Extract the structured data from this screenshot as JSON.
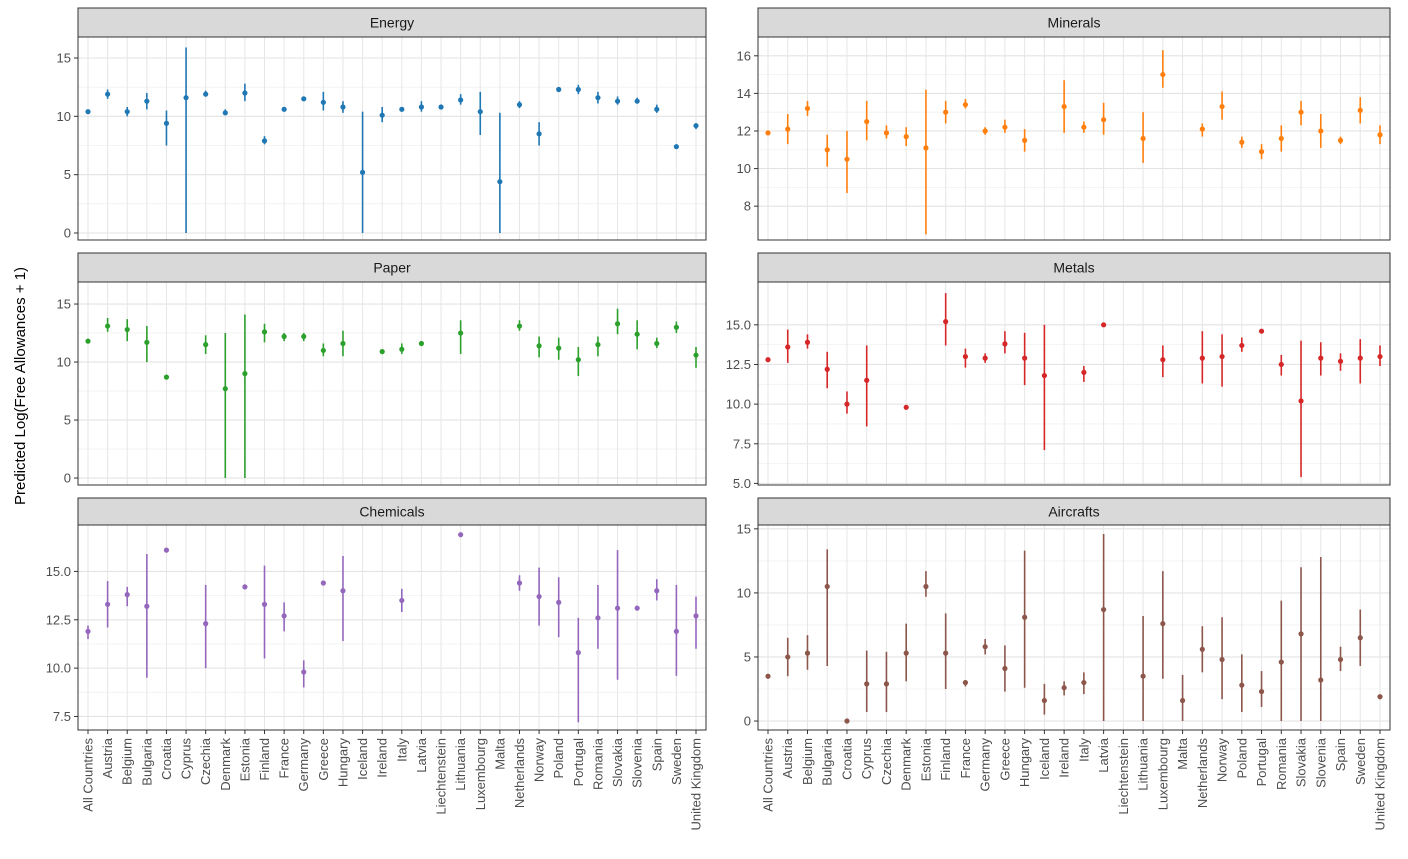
{
  "chart_data": {
    "type": "scatter",
    "ylabel": "Predicted Log(Free Allowances + 1)",
    "xlabel": "",
    "categories": [
      "All Countries",
      "Austria",
      "Belgium",
      "Bulgaria",
      "Croatia",
      "Cyprus",
      "Czechia",
      "Denmark",
      "Estonia",
      "Finland",
      "France",
      "Germany",
      "Greece",
      "Hungary",
      "Iceland",
      "Ireland",
      "Italy",
      "Latvia",
      "Liechtenstein",
      "Lithuania",
      "Luxembourg",
      "Malta",
      "Netherlands",
      "Norway",
      "Poland",
      "Portugal",
      "Romania",
      "Slovakia",
      "Slovenia",
      "Spain",
      "Sweden",
      "United Kingdom"
    ],
    "panels": [
      {
        "title": "Energy",
        "color": "#1f77b4",
        "ylim": [
          -0.6,
          16.8
        ],
        "yticks": [
          0,
          5,
          10,
          15
        ],
        "ytick_labels": [
          "0",
          "5",
          "10",
          "15"
        ],
        "points": [
          [
            10.4,
            10.4,
            10.4
          ],
          [
            11.9,
            11.5,
            12.3
          ],
          [
            10.4,
            10.0,
            10.8
          ],
          [
            11.3,
            10.6,
            12.0
          ],
          [
            9.4,
            7.5,
            10.5
          ],
          [
            11.6,
            0,
            15.9
          ],
          [
            11.9,
            11.7,
            12.2
          ],
          [
            10.3,
            10.1,
            10.6
          ],
          [
            12.0,
            11.3,
            12.8
          ],
          [
            7.9,
            7.6,
            8.3
          ],
          [
            10.6,
            10.5,
            10.8
          ],
          [
            11.5,
            11.4,
            11.6
          ],
          [
            11.2,
            10.5,
            12.1
          ],
          [
            10.8,
            10.3,
            11.3
          ],
          [
            5.2,
            0,
            10.4
          ],
          [
            10.1,
            9.5,
            10.8
          ],
          [
            10.6,
            10.5,
            10.8
          ],
          [
            10.8,
            10.4,
            11.3
          ],
          [
            10.8,
            10.7,
            10.9
          ],
          [
            11.4,
            11.0,
            11.9
          ],
          [
            10.4,
            8.4,
            12.1
          ],
          [
            4.4,
            0,
            10.3
          ],
          [
            11.0,
            10.7,
            11.3
          ],
          [
            8.5,
            7.5,
            9.5
          ],
          [
            12.3,
            12.3,
            12.3
          ],
          [
            12.3,
            11.9,
            12.7
          ],
          [
            11.6,
            11.1,
            12.1
          ],
          [
            11.3,
            11.0,
            11.7
          ],
          [
            11.3,
            11.1,
            11.6
          ],
          [
            10.6,
            10.3,
            11.0
          ],
          [
            7.4,
            7.2,
            7.6
          ],
          [
            9.2,
            8.9,
            9.4
          ]
        ]
      },
      {
        "title": "Minerals",
        "color": "#ff7f0e",
        "ylim": [
          6.2,
          17.0
        ],
        "yticks": [
          8,
          10,
          12,
          14,
          16
        ],
        "ytick_labels": [
          "8",
          "10",
          "12",
          "14",
          "16"
        ],
        "points": [
          [
            11.9,
            11.8,
            12.0
          ],
          [
            12.1,
            11.3,
            12.9
          ],
          [
            13.2,
            12.8,
            13.6
          ],
          [
            11.0,
            10.1,
            11.8
          ],
          [
            10.5,
            8.7,
            12.0
          ],
          [
            12.5,
            11.5,
            13.6
          ],
          [
            11.9,
            11.6,
            12.3
          ],
          [
            11.7,
            11.2,
            12.2
          ],
          [
            11.1,
            6.5,
            14.2
          ],
          [
            13.0,
            12.4,
            13.6
          ],
          [
            13.4,
            13.2,
            13.7
          ],
          [
            12.0,
            11.8,
            12.2
          ],
          [
            12.2,
            11.9,
            12.6
          ],
          [
            11.5,
            10.9,
            12.1
          ],
          [
            13.3,
            11.9,
            14.7
          ],
          [
            12.2,
            11.9,
            12.5
          ],
          [
            12.6,
            11.8,
            13.5
          ],
          [
            11.6,
            10.3,
            13.0
          ],
          [
            15.0,
            14.3,
            16.3
          ],
          [
            12.1,
            11.7,
            12.4
          ],
          [
            13.3,
            12.6,
            14.1
          ],
          [
            11.4,
            11.1,
            11.7
          ],
          [
            10.9,
            10.5,
            11.3
          ],
          [
            11.6,
            10.9,
            12.3
          ],
          [
            13.0,
            12.3,
            13.6
          ],
          [
            12.0,
            11.1,
            12.9
          ],
          [
            11.5,
            11.3,
            11.7
          ],
          [
            13.1,
            12.4,
            13.8
          ],
          [
            11.8,
            11.3,
            12.3
          ]
        ],
        "point_categories": [
          "All Countries",
          "Austria",
          "Belgium",
          "Bulgaria",
          "Croatia",
          "Cyprus",
          "Czechia",
          "Denmark",
          "Estonia",
          "Finland",
          "France",
          "Germany",
          "Greece",
          "Hungary",
          "Ireland",
          "Italy",
          "Latvia",
          "Lithuania",
          "Luxembourg",
          "Netherlands",
          "Norway",
          "Poland",
          "Portugal",
          "Romania",
          "Slovakia",
          "Slovenia",
          "Spain",
          "Sweden",
          "United Kingdom"
        ]
      },
      {
        "title": "Paper",
        "color": "#2ca02c",
        "ylim": [
          -0.6,
          16.9
        ],
        "yticks": [
          0,
          5,
          10,
          15
        ],
        "ytick_labels": [
          "0",
          "5",
          "10",
          "15"
        ],
        "points": [
          [
            11.8,
            11.8,
            11.8
          ],
          [
            13.1,
            12.6,
            13.8
          ],
          [
            12.8,
            11.8,
            13.7
          ],
          [
            11.7,
            10.0,
            13.1
          ],
          [
            8.7,
            8.7,
            8.7
          ],
          [
            11.5,
            10.7,
            12.3
          ],
          [
            7.7,
            0,
            12.5
          ],
          [
            9.0,
            0,
            14.1
          ],
          [
            12.6,
            11.7,
            13.3
          ],
          [
            12.2,
            11.8,
            12.5
          ],
          [
            12.2,
            11.8,
            12.5
          ],
          [
            11.0,
            10.5,
            11.6
          ],
          [
            11.6,
            10.5,
            12.7
          ],
          [
            10.9,
            10.9,
            10.9
          ],
          [
            11.1,
            10.7,
            11.6
          ],
          [
            11.6,
            11.6,
            11.6
          ],
          [
            12.5,
            10.7,
            13.6
          ],
          [
            13.1,
            12.7,
            13.6
          ],
          [
            11.4,
            10.4,
            12.2
          ],
          [
            11.2,
            10.2,
            12.1
          ],
          [
            10.2,
            8.8,
            11.3
          ],
          [
            11.5,
            10.5,
            12.2
          ],
          [
            13.3,
            12.4,
            14.6
          ],
          [
            12.4,
            11.1,
            13.6
          ],
          [
            11.6,
            11.2,
            12.1
          ],
          [
            13.0,
            12.5,
            13.5
          ],
          [
            10.6,
            9.5,
            11.3
          ]
        ],
        "point_categories": [
          "All Countries",
          "Austria",
          "Belgium",
          "Bulgaria",
          "Croatia",
          "Czechia",
          "Denmark",
          "Estonia",
          "Finland",
          "France",
          "Germany",
          "Greece",
          "Hungary",
          "Ireland",
          "Italy",
          "Latvia",
          "Lithuania",
          "Netherlands",
          "Norway",
          "Poland",
          "Portugal",
          "Romania",
          "Slovakia",
          "Slovenia",
          "Spain",
          "Sweden",
          "United Kingdom"
        ]
      },
      {
        "title": "Metals",
        "color": "#d62728",
        "ylim": [
          4.9,
          17.7
        ],
        "yticks": [
          5.0,
          7.5,
          10.0,
          12.5,
          15.0
        ],
        "ytick_labels": [
          "5.0",
          "7.5",
          "10.0",
          "12.5",
          "15.0"
        ],
        "points": [
          [
            12.8,
            12.8,
            12.8
          ],
          [
            13.6,
            12.6,
            14.7
          ],
          [
            13.9,
            13.5,
            14.4
          ],
          [
            12.2,
            11.0,
            13.3
          ],
          [
            10.0,
            9.4,
            10.8
          ],
          [
            11.5,
            8.6,
            13.7
          ],
          [
            9.8,
            9.8,
            9.8
          ],
          [
            15.2,
            13.7,
            17.0
          ],
          [
            13.0,
            12.3,
            13.5
          ],
          [
            12.9,
            12.6,
            13.2
          ],
          [
            13.8,
            13.2,
            14.6
          ],
          [
            12.9,
            11.2,
            14.5
          ],
          [
            11.8,
            7.1,
            15.0
          ],
          [
            12.0,
            11.4,
            12.4
          ],
          [
            15.0,
            15.0,
            15.0
          ],
          [
            12.8,
            11.7,
            13.7
          ],
          [
            12.9,
            11.3,
            14.6
          ],
          [
            13.0,
            11.1,
            14.4
          ],
          [
            13.7,
            13.3,
            14.2
          ],
          [
            14.6,
            14.6,
            14.6
          ],
          [
            12.5,
            11.8,
            13.1
          ],
          [
            10.2,
            5.4,
            14.0
          ],
          [
            12.9,
            11.8,
            13.9
          ],
          [
            12.7,
            12.1,
            13.2
          ],
          [
            12.9,
            11.3,
            14.1
          ],
          [
            13.0,
            12.4,
            13.7
          ]
        ],
        "point_categories": [
          "All Countries",
          "Austria",
          "Belgium",
          "Bulgaria",
          "Croatia",
          "Cyprus",
          "Denmark",
          "Finland",
          "France",
          "Germany",
          "Greece",
          "Hungary",
          "Iceland",
          "Italy",
          "Latvia",
          "Luxembourg",
          "Netherlands",
          "Norway",
          "Poland",
          "Portugal",
          "Romania",
          "Slovakia",
          "Slovenia",
          "Spain",
          "Sweden",
          "United Kingdom"
        ]
      },
      {
        "title": "Chemicals",
        "color": "#9467bd",
        "ylim": [
          6.8,
          17.4
        ],
        "yticks": [
          7.5,
          10.0,
          12.5,
          15.0
        ],
        "ytick_labels": [
          "7.5",
          "10.0",
          "12.5",
          "15.0"
        ],
        "points": [
          [
            11.9,
            11.5,
            12.2
          ],
          [
            13.3,
            12.1,
            14.5
          ],
          [
            13.8,
            13.2,
            14.2
          ],
          [
            13.2,
            9.5,
            15.9
          ],
          [
            16.1,
            16.1,
            16.1
          ],
          [
            12.3,
            10.0,
            14.3
          ],
          [
            14.2,
            14.2,
            14.2
          ],
          [
            13.3,
            10.5,
            15.3
          ],
          [
            12.7,
            11.9,
            13.4
          ],
          [
            9.8,
            9.0,
            10.4
          ],
          [
            14.4,
            14.4,
            14.4
          ],
          [
            14.0,
            11.4,
            15.8
          ],
          [
            13.5,
            12.9,
            14.1
          ],
          [
            16.9,
            16.9,
            16.9
          ],
          [
            14.4,
            14.0,
            14.8
          ],
          [
            13.7,
            12.2,
            15.2
          ],
          [
            13.4,
            11.6,
            14.7
          ],
          [
            10.8,
            7.2,
            12.6
          ],
          [
            12.6,
            11.0,
            14.3
          ],
          [
            13.1,
            9.4,
            16.1
          ],
          [
            13.1,
            13.1,
            13.1
          ],
          [
            14.0,
            13.5,
            14.6
          ],
          [
            11.9,
            9.6,
            14.3
          ],
          [
            12.7,
            11.0,
            13.7
          ]
        ],
        "point_categories": [
          "All Countries",
          "Austria",
          "Belgium",
          "Bulgaria",
          "Croatia",
          "Czechia",
          "Estonia",
          "Finland",
          "France",
          "Germany",
          "Greece",
          "Hungary",
          "Italy",
          "Lithuania",
          "Netherlands",
          "Norway",
          "Poland",
          "Portugal",
          "Romania",
          "Slovakia",
          "Slovenia",
          "Spain",
          "Sweden",
          "United Kingdom"
        ]
      },
      {
        "title": "Aircrafts",
        "color": "#8c564b",
        "ylim": [
          -0.7,
          15.3
        ],
        "yticks": [
          0,
          5,
          10,
          15
        ],
        "ytick_labels": [
          "0",
          "5",
          "10",
          "15"
        ],
        "points": [
          [
            3.5,
            3.3,
            3.6
          ],
          [
            5.0,
            3.5,
            6.5
          ],
          [
            5.3,
            4.0,
            6.7
          ],
          [
            10.5,
            4.3,
            13.4
          ],
          [
            0.0,
            0.0,
            0.0
          ],
          [
            2.9,
            0.7,
            5.5
          ],
          [
            2.9,
            0.7,
            5.4
          ],
          [
            5.3,
            3.1,
            7.6
          ],
          [
            10.5,
            9.7,
            11.7
          ],
          [
            5.3,
            2.5,
            8.4
          ],
          [
            3.0,
            2.7,
            3.2
          ],
          [
            5.8,
            5.2,
            6.4
          ],
          [
            4.1,
            2.3,
            5.9
          ],
          [
            8.1,
            2.6,
            13.3
          ],
          [
            1.6,
            0.5,
            2.9
          ],
          [
            2.6,
            2.0,
            3.1
          ],
          [
            3.0,
            2.1,
            3.8
          ],
          [
            8.7,
            0.0,
            14.6
          ],
          [
            3.5,
            0.0,
            8.2
          ],
          [
            7.6,
            3.3,
            11.7
          ],
          [
            1.6,
            0.0,
            3.6
          ],
          [
            5.6,
            3.8,
            7.4
          ],
          [
            4.8,
            1.7,
            8.1
          ],
          [
            2.8,
            0.7,
            5.2
          ],
          [
            2.3,
            1.1,
            3.9
          ],
          [
            4.6,
            0.0,
            9.4
          ],
          [
            6.8,
            0.0,
            12.0
          ],
          [
            3.2,
            0.0,
            12.8
          ],
          [
            4.8,
            3.9,
            5.8
          ],
          [
            6.5,
            4.3,
            8.7
          ],
          [
            1.9,
            1.7,
            2.0
          ]
        ],
        "point_categories": [
          "All Countries",
          "Austria",
          "Belgium",
          "Bulgaria",
          "Croatia",
          "Cyprus",
          "Czechia",
          "Denmark",
          "Estonia",
          "Finland",
          "France",
          "Germany",
          "Greece",
          "Hungary",
          "Iceland",
          "Ireland",
          "Italy",
          "Latvia",
          "Lithuania",
          "Luxembourg",
          "Malta",
          "Netherlands",
          "Norway",
          "Poland",
          "Portugal",
          "Romania",
          "Slovakia",
          "Slovenia",
          "Spain",
          "Sweden",
          "United Kingdom"
        ]
      }
    ]
  }
}
